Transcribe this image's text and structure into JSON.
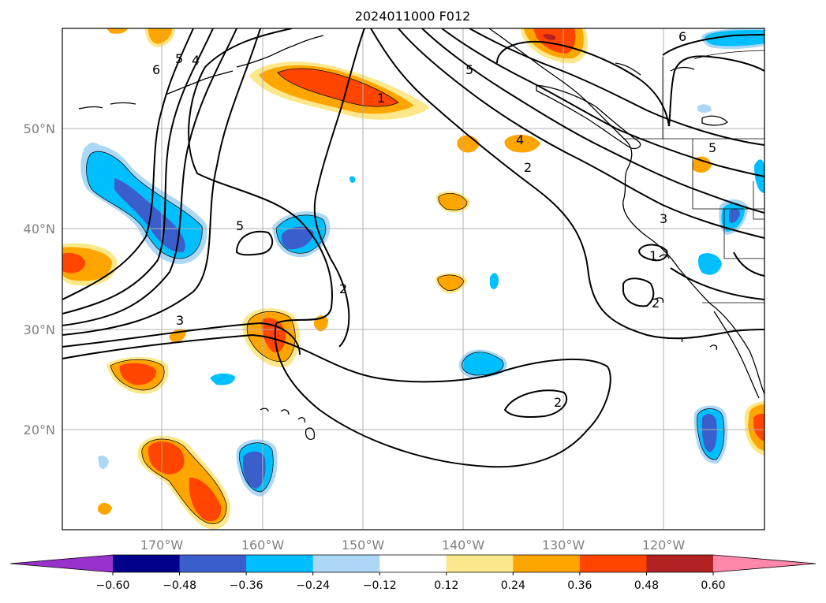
{
  "title": "2024011000 F012",
  "chart_data": {
    "type": "heatmap",
    "title": "2024011000 F012",
    "map": {
      "lon_range": [
        -180,
        -110
      ],
      "lat_range": [
        10,
        60
      ]
    },
    "lon_ticks": [
      -170,
      -160,
      -150,
      -140,
      -130,
      -120
    ],
    "lat_ticks": [
      20,
      30,
      40,
      50
    ],
    "lon_tick_labels": [
      "170°W",
      "160°W",
      "150°W",
      "140°W",
      "130°W",
      "120°W"
    ],
    "lat_tick_labels": [
      "20°N",
      "30°N",
      "40°N",
      "50°N"
    ],
    "grid": true,
    "colorbar": {
      "orientation": "horizontal",
      "boundaries": [
        -0.72,
        -0.6,
        -0.48,
        -0.36,
        -0.24,
        -0.12,
        0.12,
        0.24,
        0.36,
        0.48,
        0.6,
        0.72
      ],
      "ticks": [
        -0.6,
        -0.48,
        -0.36,
        -0.24,
        -0.12,
        0.12,
        0.24,
        0.36,
        0.48,
        0.6
      ],
      "tick_labels": [
        "−0.60",
        "−0.48",
        "−0.36",
        "−0.24",
        "−0.12",
        "0.12",
        "0.24",
        "0.36",
        "0.48",
        "0.60"
      ],
      "colors": [
        "#9932cc",
        "#00008b",
        "#3a5fcd",
        "#00bfff",
        "#add8f5",
        "#ffffff",
        "#fce88a",
        "#ffa500",
        "#ff4500",
        "#b22222",
        "#ff88aa"
      ],
      "extend": "both"
    },
    "contour_labels": [
      "6",
      "5",
      "4",
      "1",
      "5",
      "2",
      "4",
      "5",
      "3",
      "1",
      "2",
      "5",
      "2",
      "3",
      "2",
      "6"
    ],
    "filled_regions": [
      {
        "name": "orange-low-alaska",
        "level": 0.36,
        "center": [
          -152,
          54.8
        ]
      },
      {
        "name": "orange-west",
        "level": 0.36,
        "center": [
          -178.5,
          37.3
        ]
      },
      {
        "name": "blue-dateline",
        "level": -0.48,
        "center": [
          -170.5,
          40.5
        ]
      },
      {
        "name": "blue-central",
        "level": -0.48,
        "center": [
          -158.5,
          39
        ]
      },
      {
        "name": "orange-30n",
        "level": 0.36,
        "center": [
          -159.5,
          30
        ]
      },
      {
        "name": "orange-hawaii-west",
        "level": 0.36,
        "center": [
          -172,
          25.5
        ]
      },
      {
        "name": "orange-south-west",
        "level": 0.48,
        "center": [
          -168,
          15
        ]
      },
      {
        "name": "blue-south",
        "level": -0.48,
        "center": [
          -159.5,
          16
        ]
      },
      {
        "name": "blue-20n",
        "level": -0.36,
        "center": [
          -139,
          25.5
        ]
      },
      {
        "name": "blue-mexico",
        "level": -0.48,
        "center": [
          -115,
          18.5
        ]
      },
      {
        "name": "orange-mexico",
        "level": 0.36,
        "center": [
          -110.5,
          20.5
        ]
      },
      {
        "name": "orange-gulf-alaska",
        "level": 0.36,
        "center": [
          -133,
          58.5
        ]
      },
      {
        "name": "blue-canada",
        "level": -0.36,
        "center": [
          -113,
          58.8
        ]
      }
    ]
  }
}
